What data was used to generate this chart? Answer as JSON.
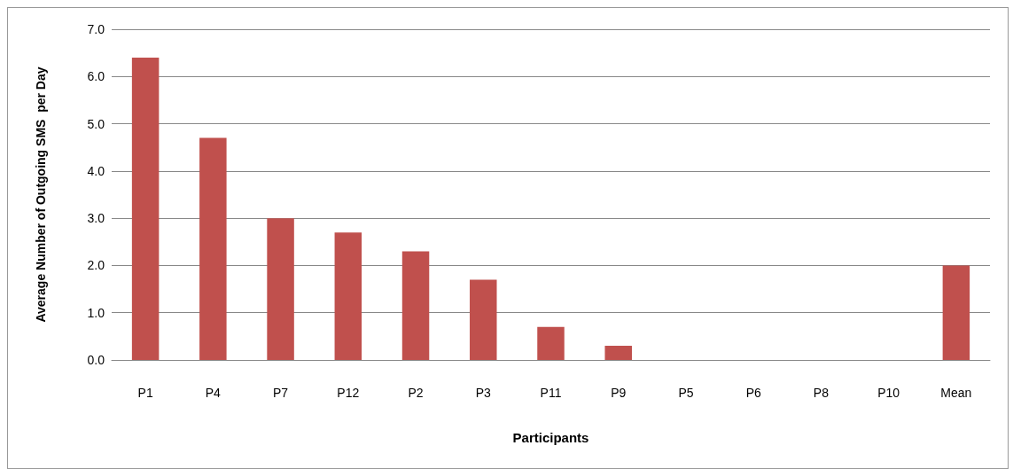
{
  "chart_data": {
    "type": "bar",
    "xlabel": "Participants",
    "ylabel": "Average Number of Outgoing SMS  per Day",
    "categories": [
      "P1",
      "P4",
      "P7",
      "P12",
      "P2",
      "P3",
      "P11",
      "P9",
      "P5",
      "P6",
      "P8",
      "P10",
      "Mean"
    ],
    "values": [
      6.4,
      4.7,
      3.0,
      2.7,
      2.3,
      1.7,
      0.7,
      0.3,
      0,
      0,
      0,
      0,
      2.0
    ],
    "color": "#c0504d",
    "ylim": [
      0,
      7
    ],
    "yticks": [
      {
        "value": 0,
        "label": "0.0"
      },
      {
        "value": 1,
        "label": "1.0"
      },
      {
        "value": 2,
        "label": "2.0"
      },
      {
        "value": 3,
        "label": "3.0"
      },
      {
        "value": 4,
        "label": "4.0"
      },
      {
        "value": 5,
        "label": "5.0"
      },
      {
        "value": 6,
        "label": "6.0"
      },
      {
        "value": 7,
        "label": "7.0"
      }
    ],
    "grid": "y"
  }
}
